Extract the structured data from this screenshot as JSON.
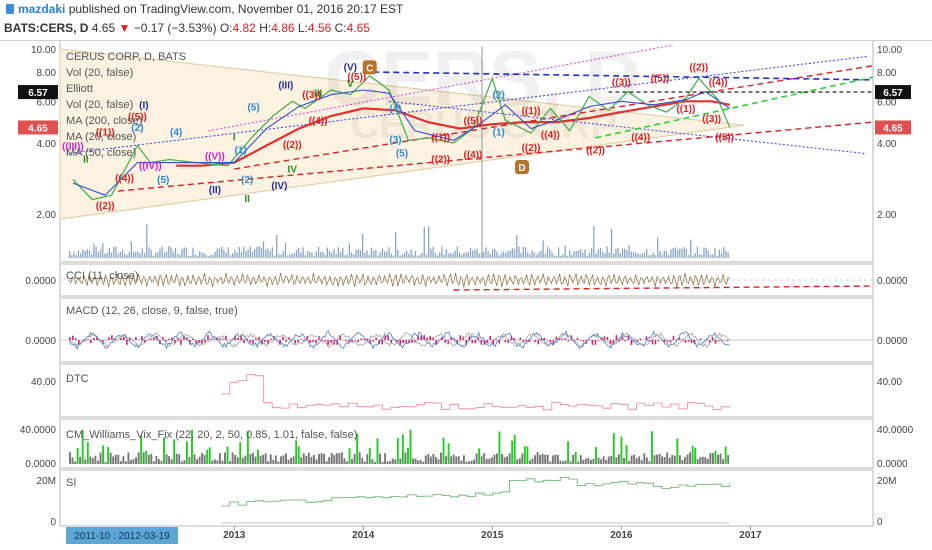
{
  "header": {
    "author": "mazdaki",
    "published": "published on TradingView.com, November 01, 2016 20:17 EST",
    "symbol": "BATS:CERS, D",
    "last": "4.65",
    "change": "−0.17 (−3.53%)",
    "o_label": "O:",
    "o_val": "4.82",
    "h_label": "H:",
    "h_val": "4.86",
    "l_label": "L:",
    "l_val": "4.56",
    "c_label": "C:",
    "c_val": "4.65"
  },
  "legend": [
    "CERUS CORP, D, BATS",
    "Vol (20, false)",
    "Elliott",
    "Vol (20, false)",
    "MA (200, close)",
    "MA (20, close)",
    "MA (50, close)"
  ],
  "watermark": "CERS, D",
  "watermark_sub": "CERUS CORP",
  "colors": {
    "price": "#4caf50",
    "ma50": "#3050d0",
    "ma200": "#e03030",
    "up": "#22cc22",
    "vol": "#6a8fb8",
    "red": "#e02020",
    "blue": "#1f2fa0",
    "green": "#2e8b22",
    "magenta": "#d020d0",
    "cyan": "#2a8ad4"
  },
  "chart_data": [
    {
      "type": "line",
      "title": "CERUS CORP, D, BATS",
      "x_labels": [
        "2013",
        "2014",
        "2015",
        "2016",
        "2017"
      ],
      "x_label_pos": [
        2013.0,
        2014.0,
        2015.0,
        2016.0,
        2017.0
      ],
      "xlim": [
        2011.65,
        2017.95
      ],
      "ylim": [
        1.3,
        10.3
      ],
      "log_scale": true,
      "y_ticks": [
        "10.00",
        "8.00",
        "6.00",
        "4.00",
        "2.00"
      ],
      "y_tick_vals": [
        10,
        8,
        6,
        4,
        2
      ],
      "last_price": "4.65",
      "level_price": "6.57",
      "price_series": [
        [
          2011.75,
          2.8
        ],
        [
          2011.9,
          2.3
        ],
        [
          2012.05,
          2.4
        ],
        [
          2012.25,
          3.9
        ],
        [
          2012.35,
          3.3
        ],
        [
          2012.5,
          3.4
        ],
        [
          2012.7,
          3.3
        ],
        [
          2012.95,
          3.2
        ],
        [
          2013.15,
          4.3
        ],
        [
          2013.3,
          5.2
        ],
        [
          2013.45,
          6.0
        ],
        [
          2013.55,
          5.6
        ],
        [
          2013.75,
          6.7
        ],
        [
          2013.9,
          6.4
        ],
        [
          2014.05,
          7.7
        ],
        [
          2014.2,
          6.7
        ],
        [
          2014.35,
          4.1
        ],
        [
          2014.5,
          4.2
        ],
        [
          2014.7,
          4.0
        ],
        [
          2014.85,
          4.6
        ],
        [
          2015.0,
          7.5
        ],
        [
          2015.1,
          5.0
        ],
        [
          2015.3,
          4.4
        ],
        [
          2015.45,
          5.6
        ],
        [
          2015.6,
          4.5
        ],
        [
          2015.75,
          6.3
        ],
        [
          2015.9,
          5.5
        ],
        [
          2016.05,
          6.6
        ],
        [
          2016.2,
          5.8
        ],
        [
          2016.35,
          5.4
        ],
        [
          2016.5,
          6.2
        ],
        [
          2016.6,
          7.5
        ],
        [
          2016.75,
          6.1
        ],
        [
          2016.84,
          4.65
        ]
      ],
      "ma50": [
        [
          2011.75,
          2.7
        ],
        [
          2012.0,
          2.4
        ],
        [
          2012.25,
          3.3
        ],
        [
          2012.5,
          3.3
        ],
        [
          2012.75,
          3.3
        ],
        [
          2013.0,
          3.3
        ],
        [
          2013.25,
          4.6
        ],
        [
          2013.5,
          5.7
        ],
        [
          2013.75,
          6.4
        ],
        [
          2014.0,
          6.7
        ],
        [
          2014.2,
          6.5
        ],
        [
          2014.4,
          4.5
        ],
        [
          2014.7,
          4.1
        ],
        [
          2014.9,
          4.8
        ],
        [
          2015.1,
          5.8
        ],
        [
          2015.3,
          4.6
        ],
        [
          2015.5,
          5.0
        ],
        [
          2015.75,
          5.7
        ],
        [
          2016.0,
          6.0
        ],
        [
          2016.25,
          5.8
        ],
        [
          2016.5,
          6.1
        ],
        [
          2016.65,
          6.6
        ],
        [
          2016.84,
          5.6
        ]
      ],
      "ma200": [
        [
          2012.55,
          3.2
        ],
        [
          2012.75,
          3.2
        ],
        [
          2013.0,
          3.3
        ],
        [
          2013.25,
          3.9
        ],
        [
          2013.5,
          4.6
        ],
        [
          2013.75,
          5.2
        ],
        [
          2014.0,
          5.6
        ],
        [
          2014.25,
          5.5
        ],
        [
          2014.5,
          4.9
        ],
        [
          2014.75,
          4.6
        ],
        [
          2015.0,
          4.8
        ],
        [
          2015.25,
          4.9
        ],
        [
          2015.5,
          4.9
        ],
        [
          2015.75,
          5.1
        ],
        [
          2016.0,
          5.4
        ],
        [
          2016.25,
          5.7
        ],
        [
          2016.5,
          6.0
        ],
        [
          2016.7,
          6.0
        ],
        [
          2016.84,
          5.8
        ]
      ],
      "wave_labels": [
        {
          "t": "C",
          "x": 2014.05,
          "y": 8.2,
          "c": "brown",
          "box": true
        },
        {
          "t": "D",
          "x": 2015.23,
          "y": 3.1,
          "c": "brown",
          "box": true
        },
        {
          "t": "(V)",
          "x": 2013.9,
          "y": 8.1,
          "c": "blue"
        },
        {
          "t": "(III)",
          "x": 2013.4,
          "y": 6.8,
          "c": "blue"
        },
        {
          "t": "(II)",
          "x": 2012.85,
          "y": 2.45,
          "c": "blue"
        },
        {
          "t": "(IV)",
          "x": 2013.35,
          "y": 2.55,
          "c": "blue"
        },
        {
          "t": "((5))",
          "x": 2013.95,
          "y": 7.4,
          "c": "red"
        },
        {
          "t": "((3))",
          "x": 2013.6,
          "y": 6.2,
          "c": "red"
        },
        {
          "t": "((4))",
          "x": 2013.65,
          "y": 4.8,
          "c": "red"
        },
        {
          "t": "((2))",
          "x": 2013.45,
          "y": 3.8,
          "c": "red"
        },
        {
          "t": "((1))",
          "x": 2012.0,
          "y": 4.3,
          "c": "red"
        },
        {
          "t": "((5))",
          "x": 2012.25,
          "y": 5.0,
          "c": "red"
        },
        {
          "t": "((4))",
          "x": 2012.15,
          "y": 2.75,
          "c": "red"
        },
        {
          "t": "((2))",
          "x": 2012.0,
          "y": 2.1,
          "c": "red"
        },
        {
          "t": "((III))",
          "x": 2011.75,
          "y": 3.75,
          "c": "magenta"
        },
        {
          "t": "((IV))",
          "x": 2012.35,
          "y": 3.1,
          "c": "magenta"
        },
        {
          "t": "((V))",
          "x": 2012.85,
          "y": 3.4,
          "c": "magenta"
        },
        {
          "t": "(2)",
          "x": 2012.25,
          "y": 4.5,
          "c": "cyan"
        },
        {
          "t": "(4)",
          "x": 2012.55,
          "y": 4.3,
          "c": "cyan"
        },
        {
          "t": "(5)",
          "x": 2012.45,
          "y": 2.7,
          "c": "cyan"
        },
        {
          "t": "(1)",
          "x": 2013.05,
          "y": 3.6,
          "c": "cyan"
        },
        {
          "t": "(2)",
          "x": 2013.1,
          "y": 2.7,
          "c": "cyan"
        },
        {
          "t": "(5)",
          "x": 2013.15,
          "y": 5.5,
          "c": "cyan"
        },
        {
          "t": "(4)",
          "x": 2014.25,
          "y": 5.4,
          "c": "cyan"
        },
        {
          "t": "(3)",
          "x": 2014.25,
          "y": 4.0,
          "c": "cyan"
        },
        {
          "t": "(5)",
          "x": 2014.3,
          "y": 3.5,
          "c": "cyan"
        },
        {
          "t": "(2)",
          "x": 2015.05,
          "y": 6.2,
          "c": "cyan"
        },
        {
          "t": "(1)",
          "x": 2015.05,
          "y": 4.3,
          "c": "cyan"
        },
        {
          "t": "((1))",
          "x": 2014.6,
          "y": 4.1,
          "c": "red"
        },
        {
          "t": "((2))",
          "x": 2014.6,
          "y": 3.3,
          "c": "red"
        },
        {
          "t": "((4))",
          "x": 2014.85,
          "y": 3.45,
          "c": "red"
        },
        {
          "t": "((5))",
          "x": 2014.85,
          "y": 4.8,
          "c": "red"
        },
        {
          "t": "((1))",
          "x": 2015.3,
          "y": 5.3,
          "c": "red"
        },
        {
          "t": "((4))",
          "x": 2015.45,
          "y": 4.2,
          "c": "red"
        },
        {
          "t": "((2))",
          "x": 2015.3,
          "y": 3.7,
          "c": "red"
        },
        {
          "t": "((3))",
          "x": 2016.0,
          "y": 7.0,
          "c": "red"
        },
        {
          "t": "((5))",
          "x": 2016.3,
          "y": 7.3,
          "c": "red"
        },
        {
          "t": "((2))",
          "x": 2016.6,
          "y": 8.1,
          "c": "red"
        },
        {
          "t": "((2))",
          "x": 2015.8,
          "y": 3.6,
          "c": "red"
        },
        {
          "t": "((4))",
          "x": 2016.15,
          "y": 4.1,
          "c": "red"
        },
        {
          "t": "((1))",
          "x": 2016.5,
          "y": 5.4,
          "c": "red"
        },
        {
          "t": "((3))",
          "x": 2016.7,
          "y": 4.9,
          "c": "red"
        },
        {
          "t": "((5))",
          "x": 2016.8,
          "y": 4.1,
          "c": "red"
        },
        {
          "t": "((4))",
          "x": 2016.75,
          "y": 7.0,
          "c": "red"
        },
        {
          "t": "(I)",
          "x": 2012.3,
          "y": 5.6,
          "c": "blue"
        },
        {
          "t": "II",
          "x": 2011.85,
          "y": 3.3,
          "c": "green"
        },
        {
          "t": "I",
          "x": 2013.0,
          "y": 4.1,
          "c": "green"
        },
        {
          "t": "III",
          "x": 2013.65,
          "y": 6.3,
          "c": "green"
        },
        {
          "t": "V",
          "x": 2013.9,
          "y": 6.9,
          "c": "green"
        },
        {
          "t": "IV",
          "x": 2013.45,
          "y": 3.0,
          "c": "green"
        },
        {
          "t": "II",
          "x": 2013.1,
          "y": 2.25,
          "c": "green"
        }
      ]
    },
    {
      "type": "line",
      "title": "CCI (11, close)",
      "y_ticks": [
        "0.0000"
      ]
    },
    {
      "type": "line",
      "title": "MACD (12, 26, close, 9, false, true)",
      "y_ticks": [
        "0.0000"
      ]
    },
    {
      "type": "line",
      "title": "DTC",
      "y_ticks": [
        "40.00"
      ]
    },
    {
      "type": "bar",
      "title": "CM_Williams_Vix_Fix (22, 20, 2, 50, 0.85, 1.01, false, false)",
      "y_ticks": [
        "40.0000",
        "0.0000"
      ]
    },
    {
      "type": "line",
      "title": "SI",
      "y_ticks": [
        "20M",
        "0"
      ]
    }
  ],
  "xaxis": {
    "range_label": "2011-10 : 2012-03-19"
  }
}
